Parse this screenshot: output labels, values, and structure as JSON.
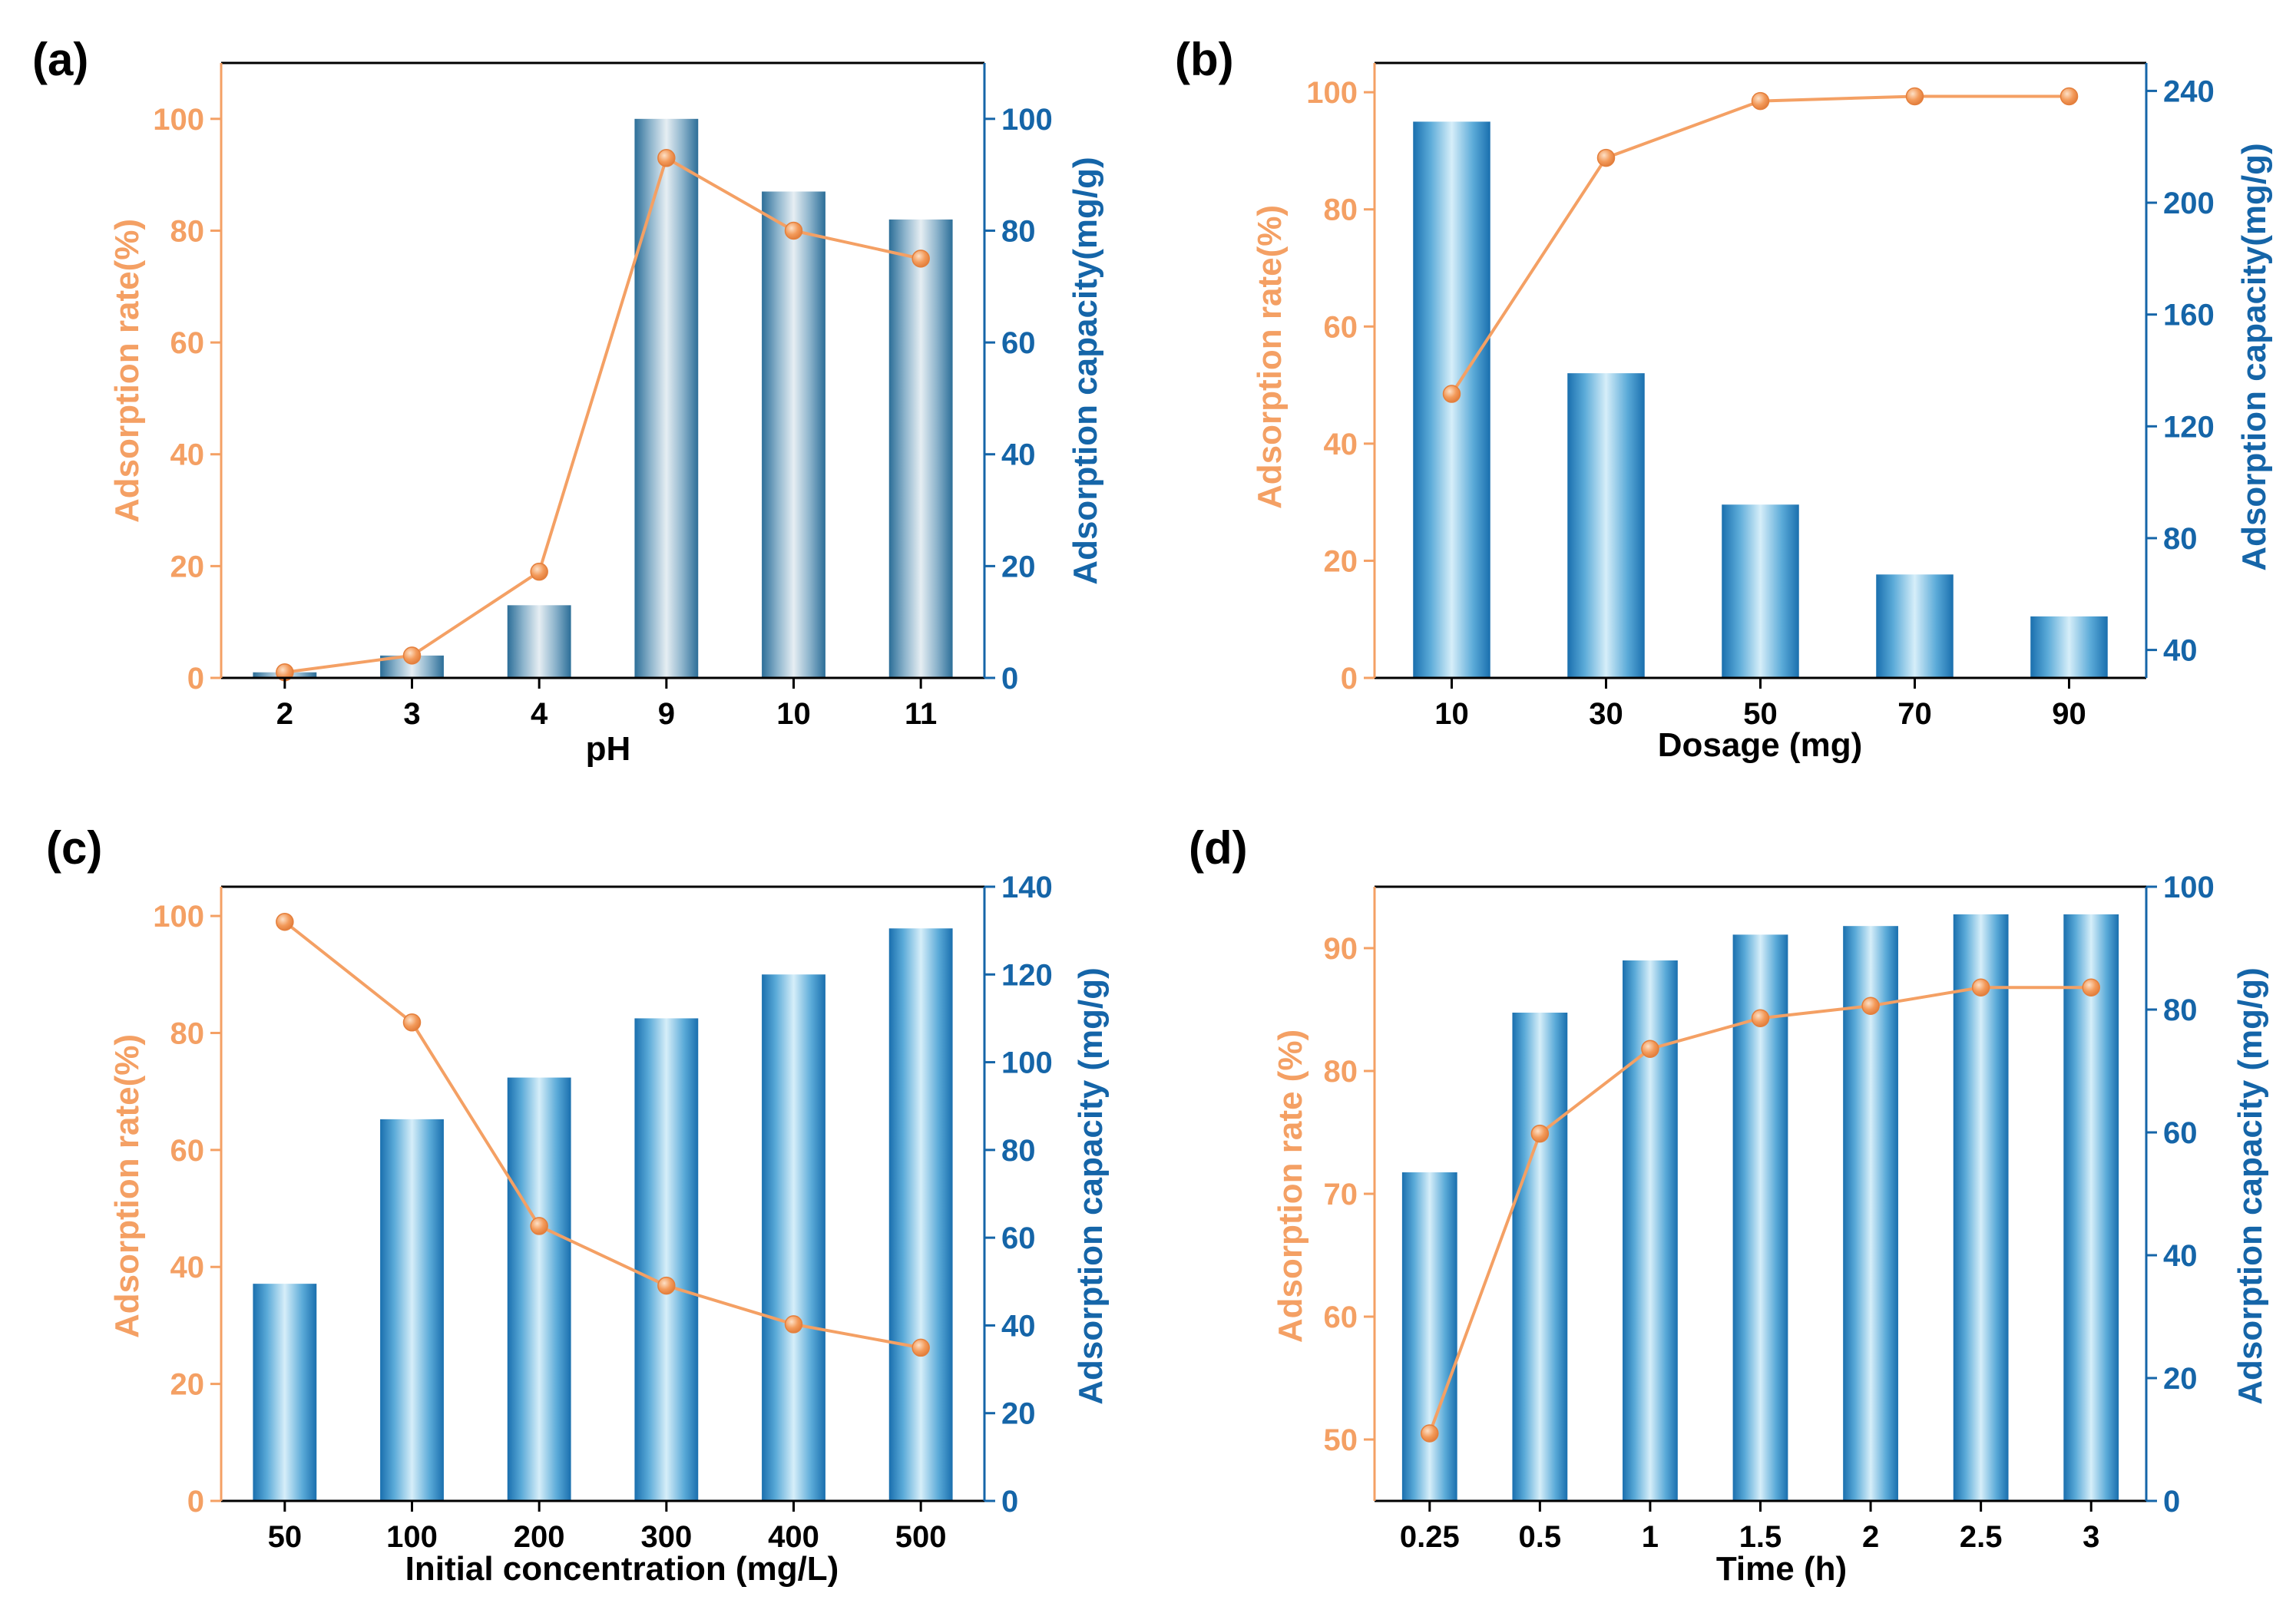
{
  "colors": {
    "left_axis": "#F4A064",
    "right_axis": "#1565A8",
    "frame": "#000000",
    "bar_edge": "#1a6fae",
    "bar_center": "#d6eef9",
    "bar_blue_grey_edge": "#2c6e98",
    "bar_blue_grey_center": "#e6eef3",
    "line": "#F4A064",
    "marker": "#F39A5A"
  },
  "chart_data": [
    {
      "id": "a",
      "panel_label": "(a)",
      "type": "bar+line",
      "categories": [
        "2",
        "3",
        "4",
        "9",
        "10",
        "11"
      ],
      "xlabel": "pH",
      "ylabel_left": "Adsorption rate(%)",
      "ylabel_right": "Adsorption capacity(mg/g)",
      "ylim_left": [
        0,
        110
      ],
      "yticks_left": [
        0,
        20,
        40,
        60,
        80,
        100
      ],
      "ylim_right": [
        0,
        110
      ],
      "yticks_right": [
        0,
        20,
        40,
        60,
        80,
        100
      ],
      "bar_style": "blue-grey",
      "series": [
        {
          "name": "Adsorption capacity",
          "axis": "right",
          "kind": "bar",
          "values": [
            1,
            4,
            13,
            100,
            87,
            82
          ]
        },
        {
          "name": "Adsorption rate",
          "axis": "left",
          "kind": "line",
          "values": [
            1,
            4,
            19,
            93,
            80,
            75
          ]
        }
      ]
    },
    {
      "id": "b",
      "panel_label": "(b)",
      "type": "bar+line",
      "categories": [
        "10",
        "30",
        "50",
        "70",
        "90"
      ],
      "xlabel": "Dosage (mg)",
      "ylabel_left": "Adsorption rate(%)",
      "ylabel_right": "Adsorption capacity(mg/g)",
      "ylim_left": [
        0,
        105
      ],
      "yticks_left": [
        0,
        20,
        40,
        60,
        80,
        100
      ],
      "ylim_right": [
        30,
        250
      ],
      "yticks_right": [
        40,
        80,
        120,
        160,
        200,
        240
      ],
      "bar_style": "blue",
      "series": [
        {
          "name": "Adsorption capacity",
          "axis": "right",
          "kind": "bar",
          "values": [
            229,
            139,
            92,
            67,
            52
          ]
        },
        {
          "name": "Adsorption rate",
          "axis": "left",
          "kind": "line",
          "values": [
            48.5,
            88.8,
            98.5,
            99.3,
            99.3
          ]
        }
      ]
    },
    {
      "id": "c",
      "panel_label": "(c)",
      "type": "bar+line",
      "categories": [
        "50",
        "100",
        "200",
        "300",
        "400",
        "500"
      ],
      "xlabel": "Initial concentration (mg/L)",
      "ylabel_left": "Adsorption rate(%)",
      "ylabel_right": "Adsorption capacity (mg/g)",
      "ylim_left": [
        0,
        105
      ],
      "yticks_left": [
        0,
        20,
        40,
        60,
        80,
        100
      ],
      "ylim_right": [
        0,
        140
      ],
      "yticks_right": [
        0,
        20,
        40,
        60,
        80,
        100,
        120,
        140
      ],
      "bar_style": "blue",
      "series": [
        {
          "name": "Adsorption capacity",
          "axis": "right",
          "kind": "bar",
          "values": [
            49.5,
            87,
            96.5,
            110,
            120,
            130.5
          ]
        },
        {
          "name": "Adsorption rate",
          "axis": "left",
          "kind": "line",
          "values": [
            99,
            81.8,
            47,
            36.8,
            30.2,
            26.2
          ]
        }
      ]
    },
    {
      "id": "d",
      "panel_label": "(d)",
      "type": "bar+line",
      "categories": [
        "0.25",
        "0.5",
        "1",
        "1.5",
        "2",
        "2.5",
        "3"
      ],
      "xlabel": "Time (h)",
      "ylabel_left": "Adsorption rate (%)",
      "ylabel_right": "Adsorption capacity (mg/g)",
      "ylim_left": [
        45,
        95
      ],
      "yticks_left": [
        50,
        60,
        70,
        80,
        90
      ],
      "ylim_right": [
        0,
        100
      ],
      "yticks_right": [
        0,
        20,
        40,
        60,
        80,
        100
      ],
      "bar_style": "blue",
      "series": [
        {
          "name": "Adsorption capacity",
          "axis": "right",
          "kind": "bar",
          "values": [
            53.5,
            79.5,
            88,
            92.2,
            93.6,
            95.5,
            95.5
          ]
        },
        {
          "name": "Adsorption rate",
          "axis": "left",
          "kind": "line",
          "values": [
            50.5,
            74.9,
            81.8,
            84.3,
            85.3,
            86.8,
            86.8
          ]
        }
      ]
    }
  ]
}
